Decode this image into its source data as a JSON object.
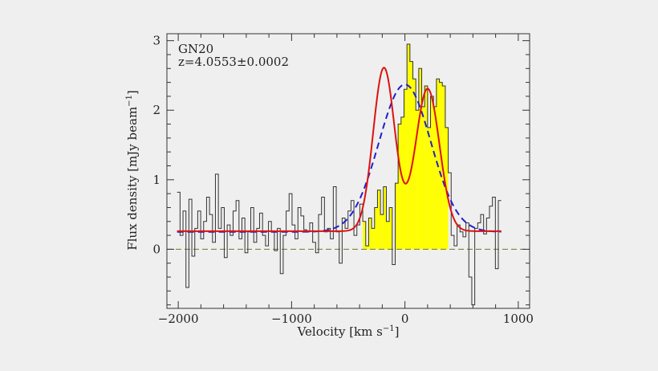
{
  "chart_data": {
    "type": "line",
    "title": "",
    "annotation": {
      "source": "GN20",
      "redshift": "z=4.0553±0.0002"
    },
    "xlabel": {
      "main": "Velocity [km s",
      "sup": "−1",
      "close": "]"
    },
    "ylabel": {
      "main": "Flux density [mJy beam",
      "sup": "−1",
      "close": "]"
    },
    "xlim": [
      -2100,
      1100
    ],
    "ylim": [
      -0.85,
      3.1
    ],
    "xticks": [
      {
        "value": -2000,
        "label": "−2000"
      },
      {
        "value": -1000,
        "label": "−1000"
      },
      {
        "value": 0,
        "label": "0"
      },
      {
        "value": 1000,
        "label": "1000"
      }
    ],
    "yticks": [
      {
        "value": 0,
        "label": "0"
      },
      {
        "value": 1,
        "label": "1"
      },
      {
        "value": 2,
        "label": "2"
      },
      {
        "value": 3,
        "label": "3"
      }
    ],
    "grid": false,
    "zero_line": true,
    "colors": {
      "histogram": "#333333",
      "fill": "#ffff00",
      "single_gauss": "#1f1fcf",
      "double_gauss": "#dd1111",
      "zero_line": "#6b7a2a"
    },
    "channel_width": 26,
    "x_start": -2010,
    "fill_range": [
      -380,
      380
    ],
    "series": [
      {
        "style": "histogram",
        "values": [
          0.82,
          0.2,
          0.55,
          -0.55,
          0.72,
          -0.1,
          0.3,
          0.55,
          0.15,
          0.4,
          0.75,
          0.5,
          0.1,
          1.08,
          0.3,
          0.6,
          -0.12,
          0.35,
          0.2,
          0.55,
          0.7,
          0.15,
          0.45,
          -0.05,
          0.25,
          0.6,
          0.1,
          0.3,
          0.52,
          0.2,
          0.05,
          0.4,
          0.25,
          -0.02,
          0.3,
          -0.35,
          0.2,
          0.55,
          0.8,
          0.35,
          0.15,
          0.6,
          0.48,
          0.28,
          0.25,
          0.38,
          0.1,
          -0.05,
          0.5,
          0.75,
          0.25,
          0.3,
          0.15,
          0.9,
          0.25,
          -0.2,
          0.45,
          0.3,
          0.55,
          0.7,
          0.2,
          0.35,
          0.65,
          0.4,
          0.05,
          0.45,
          0.3,
          0.6,
          0.85,
          0.5,
          0.9,
          0.4,
          0.6,
          -0.22,
          0.95,
          1.8,
          1.9,
          2.3,
          2.95,
          2.7,
          2.45,
          2.0,
          2.6,
          2.05,
          2.35,
          1.75,
          2.2,
          2.05,
          2.45,
          2.4,
          2.35,
          1.75,
          1.1,
          0.2,
          0.05,
          0.35,
          0.25,
          0.18,
          0.38,
          -0.4,
          -0.8,
          0.3,
          0.38,
          0.5,
          0.22,
          0.45,
          0.62,
          0.75,
          -0.28,
          0.7
        ]
      },
      {
        "style": "dashed",
        "amplitude": 2.12,
        "center": 0,
        "sigma": 230,
        "baseline": 0.25
      },
      {
        "style": "solid",
        "baseline": 0.26,
        "components": [
          {
            "amplitude": 2.35,
            "center": -185,
            "sigma": 95
          },
          {
            "amplitude": 2.05,
            "center": 200,
            "sigma": 105
          }
        ]
      }
    ]
  }
}
